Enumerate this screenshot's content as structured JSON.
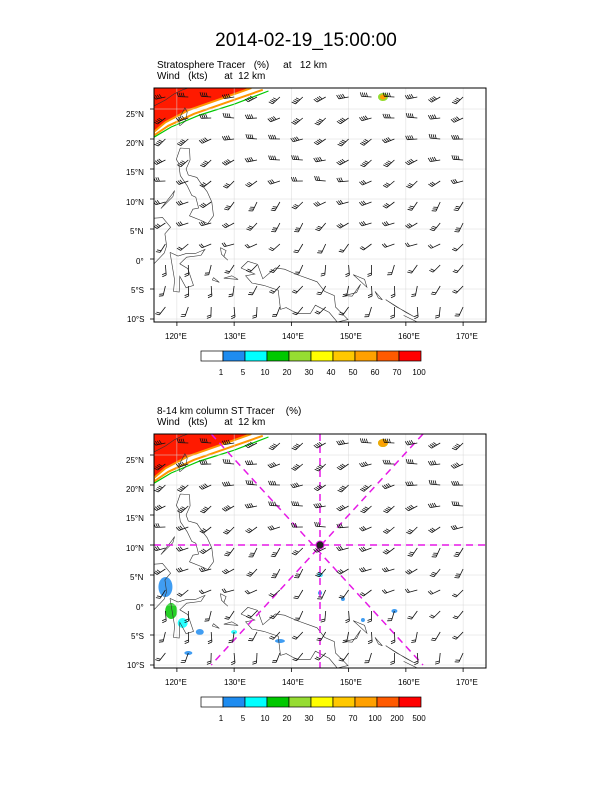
{
  "title": "2014-02-19_15:00:00",
  "panels": [
    {
      "name": "Stratosphere Tracer",
      "subtitle_line1": "Stratosphere Tracer   (%)     at   12 km",
      "subtitle_line2": "Wind   (kts)      at  12 km",
      "colorbar": {
        "labels": [
          "1",
          "5",
          "10",
          "20",
          "30",
          "40",
          "50",
          "60",
          "70",
          "100"
        ],
        "colors": [
          "#ffffff",
          "#1e8cf0",
          "#00ffff",
          "#00c800",
          "#96dc32",
          "#ffff00",
          "#ffc800",
          "#ffa000",
          "#ff5a00",
          "#ff0000"
        ]
      }
    },
    {
      "name": "8-14 km column ST Tracer",
      "subtitle_line1": "8-14 km column ST Tracer    (%)",
      "subtitle_line2": "Wind   (kts)      at  12 km",
      "colorbar": {
        "labels": [
          "1",
          "5",
          "10",
          "20",
          "30",
          "50",
          "70",
          "100",
          "200",
          "500"
        ],
        "colors": [
          "#ffffff",
          "#1e8cf0",
          "#00ffff",
          "#00c800",
          "#96dc32",
          "#ffff00",
          "#ffc800",
          "#ffa000",
          "#ff5a00",
          "#ff0000"
        ]
      }
    }
  ],
  "map_axes": {
    "lon_range": [
      116,
      174
    ],
    "lat_range": [
      -10.5,
      28.5
    ],
    "lon_ticks": [
      "120°E",
      "130°E",
      "140°E",
      "150°E",
      "160°E",
      "170°E"
    ],
    "lon_tick_values": [
      120,
      130,
      140,
      150,
      160,
      170
    ],
    "lat_ticks": [
      "25°N",
      "20°N",
      "15°N",
      "10°N",
      "5°N",
      "0°",
      "5°S",
      "10°S"
    ],
    "lat_tick_values": [
      25,
      20,
      15,
      10,
      5,
      0,
      -5,
      -10
    ]
  },
  "cross_section": {
    "center_lon": 145,
    "center_lat": 10,
    "line_color": "#e619e6"
  }
}
